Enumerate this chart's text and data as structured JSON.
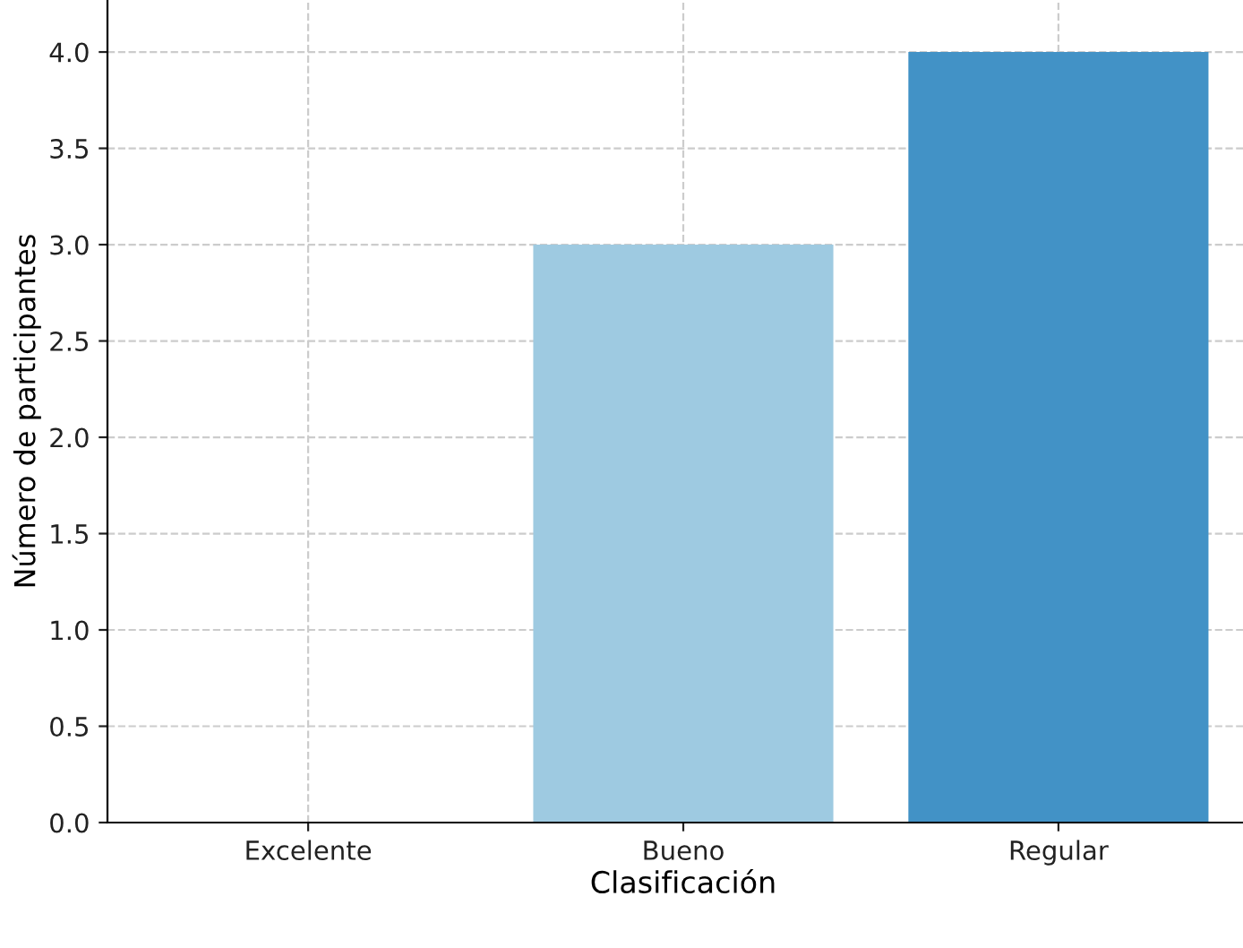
{
  "chart_data": {
    "type": "bar",
    "xlabel": "Clasificación",
    "ylabel": "Número de participantes",
    "categories": [
      "Excelente",
      "Bueno",
      "Regular"
    ],
    "values": [
      0,
      3,
      4
    ],
    "colors": [
      "#f7fbff",
      "#9ecae1",
      "#4292c6"
    ],
    "ylim": [
      0,
      4.27
    ],
    "yticks": [
      {
        "value": 0,
        "label": "0.0"
      },
      {
        "value": 0.5,
        "label": "0.5"
      },
      {
        "value": 1,
        "label": "1.0"
      },
      {
        "value": 1.5,
        "label": "1.5"
      },
      {
        "value": 2,
        "label": "2.0"
      },
      {
        "value": 2.5,
        "label": "2.5"
      },
      {
        "value": 3,
        "label": "3.0"
      },
      {
        "value": 3.5,
        "label": "3.5"
      },
      {
        "value": 4,
        "label": "4.0"
      }
    ],
    "grid": true
  }
}
